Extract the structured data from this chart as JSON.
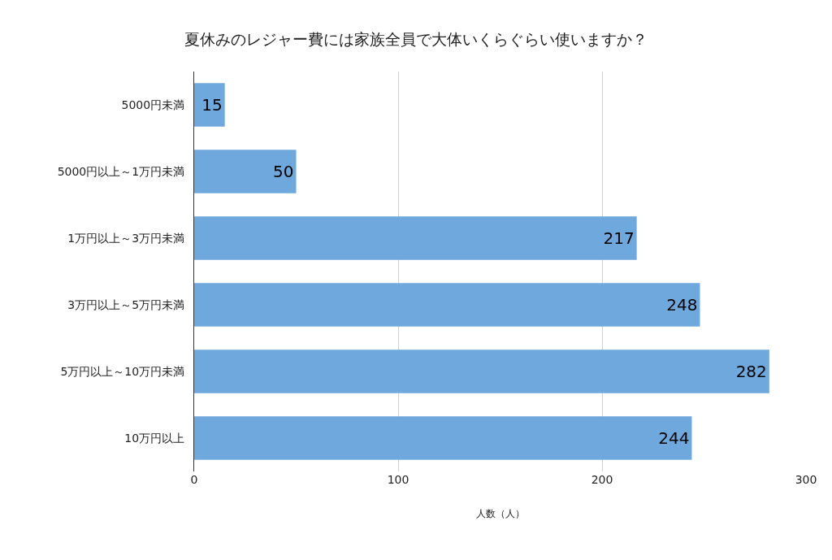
{
  "chart_data": {
    "type": "bar",
    "orientation": "horizontal",
    "title": "夏休みのレジャー費には家族全員で大体いくらぐらい使いますか？",
    "xlabel": "人数（人）",
    "categories": [
      "5000円未満",
      "5000円以上～1万円未満",
      "1万円以上～3万円未満",
      "3万円以上～5万円未満",
      "5万円以上～10万円未満",
      "10万円以上"
    ],
    "values": [
      15,
      50,
      217,
      248,
      282,
      244
    ],
    "color": "#6fa8dc",
    "xlim": [
      0,
      300
    ],
    "xticks": [
      0,
      100,
      200,
      300
    ],
    "grid": "x",
    "data_labels": true
  }
}
